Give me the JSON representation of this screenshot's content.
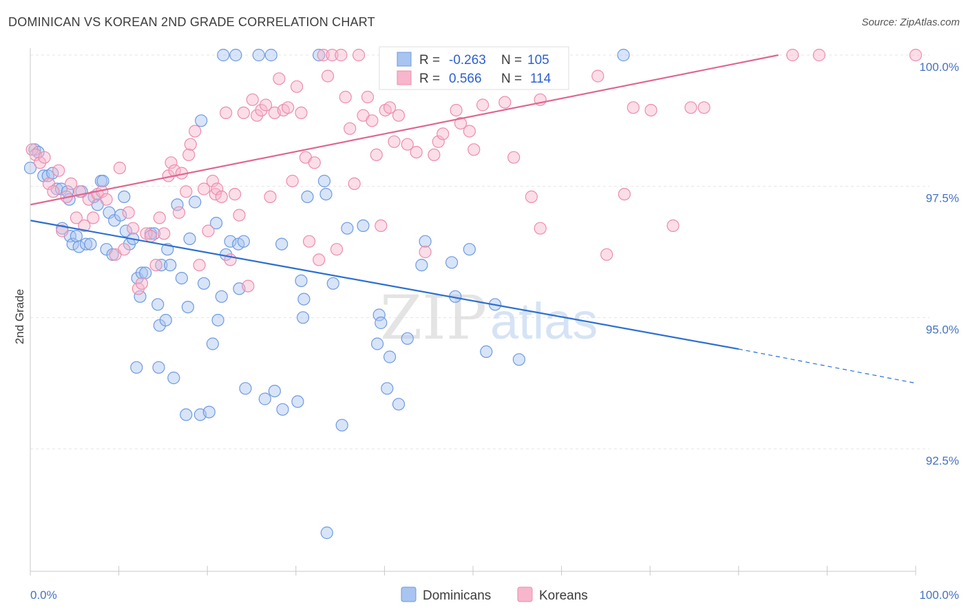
{
  "header": {
    "title": "DOMINICAN VS KOREAN 2ND GRADE CORRELATION CHART",
    "source": "Source: ZipAtlas.com"
  },
  "watermark": "ZIPatlas",
  "colors": {
    "dominicans_fill": "#a8c4f0",
    "dominicans_stroke": "#6d9ae0",
    "dominicans_line": "#2b6fd0",
    "koreans_fill": "#f7b6cb",
    "koreans_stroke": "#ec8cac",
    "koreans_line": "#e0668f",
    "axis_tick_text": "#4472c4",
    "grid": "#e4e4e4"
  },
  "legend": {
    "rows": [
      {
        "r_label": "R =",
        "r_value": "-0.263",
        "n_label": "N =",
        "n_value": "105"
      },
      {
        "r_label": "R =",
        "r_value": "0.566",
        "n_label": "N =",
        "n_value": "114"
      }
    ]
  },
  "bottom_legend": [
    "Dominicans",
    "Koreans"
  ],
  "chart_data": {
    "type": "scatter",
    "ylabel": "2nd Grade",
    "xlim": [
      0,
      100
    ],
    "ylim": [
      90.4,
      100.8
    ],
    "x_tick_labels": [
      "0.0%",
      "100.0%"
    ],
    "y_ticks": [
      92.5,
      95.0,
      97.5,
      100.0
    ],
    "y_tick_labels": [
      "92.5%",
      "95.0%",
      "97.5%",
      "100.0%"
    ],
    "grid": true,
    "legend_position": "top-center",
    "series": [
      {
        "name": "Dominicans",
        "trend": {
          "x0": 0,
          "y0": 96.85,
          "x1": 80,
          "y1": 94.4,
          "dash_to_x": 100,
          "dash_to_y": 93.75
        },
        "points": [
          [
            0,
            97.85
          ],
          [
            0.5,
            98.2
          ],
          [
            0.9,
            98.15
          ],
          [
            1.5,
            97.7
          ],
          [
            2,
            97.7
          ],
          [
            2.5,
            97.75
          ],
          [
            3,
            97.45
          ],
          [
            3.5,
            97.45
          ],
          [
            4.2,
            97.4
          ],
          [
            4.4,
            97.25
          ],
          [
            3.6,
            96.7
          ],
          [
            4.5,
            96.55
          ],
          [
            4.8,
            96.4
          ],
          [
            5.2,
            96.55
          ],
          [
            5.5,
            96.35
          ],
          [
            5.8,
            97.4
          ],
          [
            6.3,
            96.4
          ],
          [
            6.8,
            96.4
          ],
          [
            7.2,
            97.3
          ],
          [
            7.6,
            97.15
          ],
          [
            8,
            97.6
          ],
          [
            8.2,
            97.6
          ],
          [
            8.6,
            96.3
          ],
          [
            8.9,
            97
          ],
          [
            9.3,
            96.2
          ],
          [
            9.5,
            96.85
          ],
          [
            10.2,
            96.95
          ],
          [
            10.6,
            97.3
          ],
          [
            10.8,
            96.65
          ],
          [
            11.2,
            96.4
          ],
          [
            11.6,
            96.5
          ],
          [
            12.1,
            95.75
          ],
          [
            12.4,
            95.4
          ],
          [
            12.6,
            95.85
          ],
          [
            13,
            95.85
          ],
          [
            13.6,
            96.6
          ],
          [
            14,
            96.6
          ],
          [
            14.4,
            95.25
          ],
          [
            14.6,
            94.85
          ],
          [
            14.8,
            96
          ],
          [
            15.3,
            94.95
          ],
          [
            15.5,
            96.3
          ],
          [
            15.8,
            96.0
          ],
          [
            14.5,
            94.05
          ],
          [
            16.2,
            93.85
          ],
          [
            16.6,
            97.15
          ],
          [
            17.1,
            95.75
          ],
          [
            17.6,
            93.15
          ],
          [
            17.8,
            95.2
          ],
          [
            18,
            96.5
          ],
          [
            18.6,
            97.2
          ],
          [
            19.2,
            93.15
          ],
          [
            19.3,
            98.75
          ],
          [
            19.6,
            95.65
          ],
          [
            20.2,
            93.2
          ],
          [
            20.6,
            94.5
          ],
          [
            21,
            96.8
          ],
          [
            21.2,
            94.95
          ],
          [
            21.6,
            95.4
          ],
          [
            21.8,
            100
          ],
          [
            22.1,
            96.2
          ],
          [
            22.6,
            96.45
          ],
          [
            23.2,
            100
          ],
          [
            23.5,
            96.4
          ],
          [
            23.6,
            95.55
          ],
          [
            24.1,
            96.45
          ],
          [
            24.3,
            93.65
          ],
          [
            25.8,
            100
          ],
          [
            26.5,
            93.45
          ],
          [
            27.2,
            100
          ],
          [
            27.6,
            93.6
          ],
          [
            28.4,
            96.4
          ],
          [
            28.5,
            93.25
          ],
          [
            30.2,
            93.4
          ],
          [
            30.6,
            95.7
          ],
          [
            30.8,
            95.0
          ],
          [
            30.9,
            95.35
          ],
          [
            31.3,
            97.3
          ],
          [
            32.6,
            100
          ],
          [
            33.2,
            97.6
          ],
          [
            33.4,
            97.35
          ],
          [
            34.2,
            95.65
          ],
          [
            35.2,
            92.95
          ],
          [
            35.8,
            96.7
          ],
          [
            37.6,
            96.75
          ],
          [
            39.2,
            94.5
          ],
          [
            39.4,
            95.05
          ],
          [
            39.6,
            94.9
          ],
          [
            40.3,
            93.65
          ],
          [
            40.6,
            94.25
          ],
          [
            41.6,
            93.35
          ],
          [
            42.6,
            94.6
          ],
          [
            44.2,
            96.0
          ],
          [
            44.6,
            96.45
          ],
          [
            47.6,
            96.05
          ],
          [
            48,
            95.4
          ],
          [
            49.6,
            96.3
          ],
          [
            51.5,
            94.35
          ],
          [
            52.5,
            95.25
          ],
          [
            55.2,
            94.2
          ],
          [
            67,
            100
          ],
          [
            33.5,
            90.9
          ],
          [
            12,
            94.05
          ]
        ]
      },
      {
        "name": "Koreans",
        "trend": {
          "x0": 0,
          "y0": 97.15,
          "x1": 84.5,
          "y1": 100.0
        },
        "points": [
          [
            0.2,
            98.2
          ],
          [
            0.6,
            98.1
          ],
          [
            1.1,
            97.95
          ],
          [
            1.6,
            98.05
          ],
          [
            2.1,
            97.55
          ],
          [
            2.6,
            97.4
          ],
          [
            3.2,
            97.8
          ],
          [
            3.6,
            96.65
          ],
          [
            4.1,
            97.3
          ],
          [
            4.6,
            97.55
          ],
          [
            5.2,
            96.9
          ],
          [
            5.6,
            97.4
          ],
          [
            6.1,
            96.75
          ],
          [
            6.6,
            97.25
          ],
          [
            7.1,
            96.9
          ],
          [
            7.6,
            97.35
          ],
          [
            8.1,
            97.4
          ],
          [
            8.6,
            97.25
          ],
          [
            9.6,
            96.2
          ],
          [
            10.1,
            97.85
          ],
          [
            10.6,
            96.3
          ],
          [
            11.1,
            97
          ],
          [
            11.6,
            96.7
          ],
          [
            12.2,
            95.55
          ],
          [
            12.6,
            95.65
          ],
          [
            13.1,
            96.6
          ],
          [
            13.6,
            96.55
          ],
          [
            14.2,
            96.0
          ],
          [
            14.6,
            96.9
          ],
          [
            15.1,
            96.6
          ],
          [
            15.6,
            97.7
          ],
          [
            15.9,
            97.95
          ],
          [
            16.3,
            97.8
          ],
          [
            16.8,
            97
          ],
          [
            17.1,
            97.75
          ],
          [
            17.6,
            97.4
          ],
          [
            17.9,
            98.1
          ],
          [
            18.1,
            98.3
          ],
          [
            18.6,
            98.55
          ],
          [
            19.1,
            96.0
          ],
          [
            19.6,
            97.45
          ],
          [
            20.1,
            96.65
          ],
          [
            20.6,
            97.6
          ],
          [
            20.9,
            97.35
          ],
          [
            21.1,
            97.45
          ],
          [
            21.6,
            97.3
          ],
          [
            22.1,
            98.9
          ],
          [
            22.6,
            96.1
          ],
          [
            23.1,
            97.35
          ],
          [
            23.6,
            96.95
          ],
          [
            24.1,
            98.9
          ],
          [
            24.6,
            95.6
          ],
          [
            25.1,
            99.15
          ],
          [
            25.6,
            98.85
          ],
          [
            26.1,
            98.95
          ],
          [
            26.6,
            99.05
          ],
          [
            27.1,
            97.3
          ],
          [
            27.6,
            98.9
          ],
          [
            28.1,
            99.55
          ],
          [
            28.6,
            98.95
          ],
          [
            29.1,
            99.0
          ],
          [
            29.6,
            97.6
          ],
          [
            30.1,
            99.4
          ],
          [
            30.6,
            98.9
          ],
          [
            31.1,
            98.05
          ],
          [
            31.5,
            96.45
          ],
          [
            32.1,
            97.95
          ],
          [
            32.6,
            96.1
          ],
          [
            33.1,
            100
          ],
          [
            33.6,
            99.6
          ],
          [
            34.1,
            100
          ],
          [
            34.6,
            96.3
          ],
          [
            35.1,
            100
          ],
          [
            35.6,
            99.2
          ],
          [
            36.1,
            98.6
          ],
          [
            36.6,
            97.55
          ],
          [
            37.1,
            100
          ],
          [
            37.6,
            98.85
          ],
          [
            38.1,
            99.2
          ],
          [
            38.6,
            98.75
          ],
          [
            39.1,
            98.1
          ],
          [
            39.6,
            96.75
          ],
          [
            40.1,
            98.95
          ],
          [
            40.6,
            99.0
          ],
          [
            41.1,
            98.35
          ],
          [
            41.6,
            98.85
          ],
          [
            42.6,
            98.3
          ],
          [
            43.6,
            98.15
          ],
          [
            44.6,
            96.25
          ],
          [
            45.6,
            98.1
          ],
          [
            46.1,
            98.35
          ],
          [
            46.6,
            98.5
          ],
          [
            48.1,
            98.95
          ],
          [
            48.6,
            98.7
          ],
          [
            49.6,
            98.55
          ],
          [
            50.1,
            98.2
          ],
          [
            51.1,
            99.05
          ],
          [
            53.6,
            99.1
          ],
          [
            54.6,
            98.05
          ],
          [
            56.6,
            97.3
          ],
          [
            57.6,
            99.15
          ],
          [
            57.6,
            96.7
          ],
          [
            59.1,
            99.6
          ],
          [
            60.1,
            99.6
          ],
          [
            64.1,
            99.6
          ],
          [
            65.1,
            96.2
          ],
          [
            67.1,
            97.35
          ],
          [
            68.1,
            99.0
          ],
          [
            70.1,
            98.95
          ],
          [
            72.6,
            96.75
          ],
          [
            74.6,
            99.0
          ],
          [
            76.1,
            99.0
          ],
          [
            86.1,
            100
          ],
          [
            89.1,
            100
          ],
          [
            100,
            100
          ],
          [
            43.5,
            100
          ]
        ]
      }
    ]
  }
}
